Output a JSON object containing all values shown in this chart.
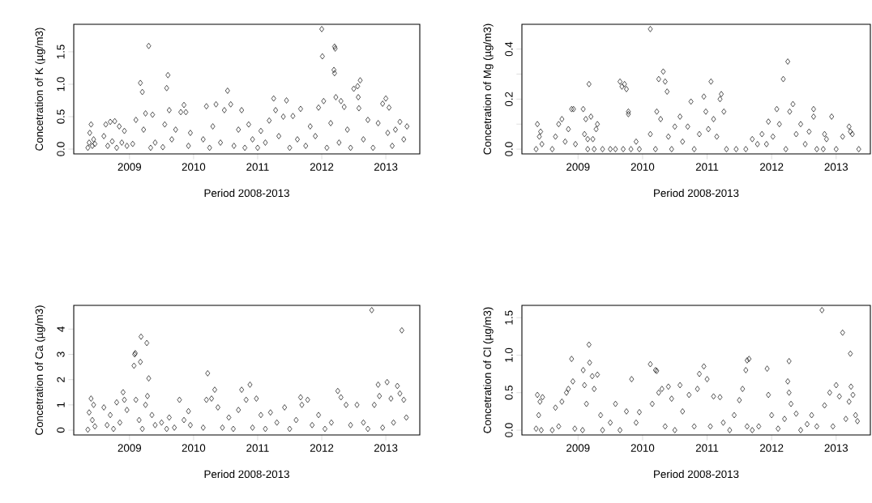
{
  "chart_data": [
    {
      "type": "scatter",
      "xlabel": "Period 2008-2013",
      "ylabel": "Concetration of K (µg/m3)",
      "marker": "diamond",
      "color": "#000000",
      "xlim": [
        2008.13,
        2013.53
      ],
      "xticks": [
        2009,
        2010,
        2011,
        2012,
        2013
      ],
      "ylim": [
        -0.074,
        1.924
      ],
      "yticks": [
        {
          "value": 0,
          "label": "0.0"
        },
        {
          "value": 0.5,
          "label": "0.5"
        },
        {
          "value": 1,
          "label": "1.0"
        },
        {
          "value": 1.5,
          "label": "1.5"
        }
      ],
      "x": [
        2008.35,
        2008.37,
        2008.38,
        2008.4,
        2008.42,
        2008.44,
        2008.46,
        2008.6,
        2008.63,
        2008.66,
        2008.7,
        2008.73,
        2008.77,
        2008.8,
        2008.84,
        2008.88,
        2008.92,
        2008.96,
        2009.05,
        2009.1,
        2009.17,
        2009.2,
        2009.22,
        2009.25,
        2009.3,
        2009.33,
        2009.36,
        2009.4,
        2009.52,
        2009.55,
        2009.58,
        2009.6,
        2009.62,
        2009.66,
        2009.72,
        2009.8,
        2009.85,
        2009.88,
        2009.92,
        2009.95,
        2010.15,
        2010.2,
        2010.25,
        2010.3,
        2010.35,
        2010.42,
        2010.48,
        2010.53,
        2010.58,
        2010.63,
        2010.7,
        2010.75,
        2010.8,
        2010.86,
        2010.92,
        2011.0,
        2011.05,
        2011.12,
        2011.18,
        2011.25,
        2011.28,
        2011.33,
        2011.4,
        2011.45,
        2011.5,
        2011.55,
        2011.62,
        2011.67,
        2011.75,
        2011.82,
        2011.9,
        2011.95,
        2012.0,
        2012.01,
        2012.03,
        2012.08,
        2012.14,
        2012.2,
        2012.21,
        2012.19,
        2012.2,
        2012.22,
        2012.27,
        2012.3,
        2012.35,
        2012.4,
        2012.45,
        2012.5,
        2012.56,
        2012.57,
        2012.58,
        2012.6,
        2012.65,
        2012.72,
        2012.8,
        2012.88,
        2012.95,
        2013.0,
        2013.03,
        2013.05,
        2013.1,
        2013.15,
        2013.22,
        2013.28,
        2013.33
      ],
      "values": [
        0.02,
        0.1,
        0.25,
        0.38,
        0.05,
        0.15,
        0.08,
        0.2,
        0.38,
        0.05,
        0.42,
        0.12,
        0.43,
        0.02,
        0.35,
        0.1,
        0.28,
        0.05,
        0.08,
        0.45,
        1.02,
        0.88,
        0.3,
        0.55,
        1.59,
        0.02,
        0.53,
        0.1,
        0.03,
        0.38,
        0.94,
        1.14,
        0.6,
        0.15,
        0.3,
        0.57,
        0.68,
        0.57,
        0.05,
        0.25,
        0.15,
        0.66,
        0.02,
        0.35,
        0.69,
        0.1,
        0.6,
        0.9,
        0.69,
        0.05,
        0.3,
        0.6,
        0.02,
        0.38,
        0.15,
        0.02,
        0.28,
        0.1,
        0.44,
        0.78,
        0.6,
        0.2,
        0.5,
        0.75,
        0.02,
        0.51,
        0.15,
        0.62,
        0.05,
        0.35,
        0.2,
        0.64,
        1.85,
        1.43,
        0.74,
        0.02,
        0.4,
        1.58,
        1.55,
        1.22,
        1.17,
        0.8,
        0.1,
        0.74,
        0.65,
        0.3,
        0.02,
        0.93,
        0.97,
        0.8,
        0.63,
        1.06,
        0.15,
        0.45,
        0.02,
        0.4,
        0.7,
        0.78,
        0.25,
        0.64,
        0.05,
        0.3,
        0.42,
        0.15,
        0.35
      ]
    },
    {
      "type": "scatter",
      "xlabel": "Period 2008-2013",
      "ylabel": "Concetration of Mg (µg/m3)",
      "marker": "diamond",
      "color": "#000000",
      "xlim": [
        2008.13,
        2013.53
      ],
      "xticks": [
        2009,
        2010,
        2011,
        2012,
        2013
      ],
      "ylim": [
        -0.019,
        0.499
      ],
      "yticks": [
        {
          "value": 0,
          "label": "0.0"
        },
        {
          "value": 0.1,
          "label": null
        },
        {
          "value": 0.2,
          "label": "0.2"
        },
        {
          "value": 0.3,
          "label": null
        },
        {
          "value": 0.4,
          "label": "0.4"
        }
      ],
      "x": [
        2008.35,
        2008.37,
        2008.4,
        2008.42,
        2008.44,
        2008.6,
        2008.65,
        2008.7,
        2008.75,
        2008.8,
        2008.85,
        2008.9,
        2008.93,
        2008.96,
        2009.08,
        2009.1,
        2009.12,
        2009.15,
        2009.17,
        2009.2,
        2009.23,
        2009.28,
        2009.3,
        2009.15,
        2009.25,
        2009.38,
        2009.5,
        2009.58,
        2009.65,
        2009.68,
        2009.72,
        2009.75,
        2009.78,
        2009.78,
        2009.7,
        2009.82,
        2009.9,
        2009.95,
        2010.12,
        2010.12,
        2010.2,
        2010.22,
        2010.25,
        2010.28,
        2010.32,
        2010.35,
        2010.38,
        2010.4,
        2010.45,
        2010.5,
        2010.58,
        2010.62,
        2010.7,
        2010.75,
        2010.8,
        2010.88,
        2010.95,
        2010.98,
        2011.02,
        2011.06,
        2011.1,
        2011.15,
        2011.2,
        2011.22,
        2011.26,
        2011.3,
        2011.45,
        2011.6,
        2011.7,
        2011.78,
        2011.85,
        2011.92,
        2011.95,
        2012.02,
        2012.08,
        2012.12,
        2012.18,
        2012.22,
        2012.25,
        2012.28,
        2012.33,
        2012.38,
        2012.45,
        2012.52,
        2012.58,
        2012.65,
        2012.65,
        2012.7,
        2012.8,
        2012.82,
        2012.85,
        2012.93,
        2013.0,
        2013.1,
        2013.2,
        2013.22,
        2013.25,
        2013.35
      ],
      "values": [
        0.0,
        0.1,
        0.05,
        0.07,
        0.02,
        0.0,
        0.05,
        0.1,
        0.12,
        0.03,
        0.08,
        0.16,
        0.16,
        0.02,
        0.16,
        0.06,
        0.12,
        0.04,
        0.26,
        0.13,
        0.04,
        0.08,
        0.1,
        0.0,
        0.0,
        0.0,
        0.0,
        0.0,
        0.27,
        0.25,
        0.26,
        0.24,
        0.15,
        0.14,
        0.0,
        0.0,
        0.03,
        0.0,
        0.48,
        0.06,
        0.0,
        0.15,
        0.28,
        0.12,
        0.31,
        0.27,
        0.23,
        0.05,
        0.0,
        0.09,
        0.13,
        0.03,
        0.09,
        0.19,
        0.0,
        0.06,
        0.21,
        0.15,
        0.08,
        0.27,
        0.12,
        0.05,
        0.2,
        0.22,
        0.15,
        0.0,
        0.0,
        0.0,
        0.04,
        0.02,
        0.06,
        0.02,
        0.11,
        0.05,
        0.16,
        0.1,
        0.28,
        0.0,
        0.35,
        0.15,
        0.18,
        0.06,
        0.1,
        0.02,
        0.07,
        0.16,
        0.13,
        0.0,
        0.0,
        0.06,
        0.04,
        0.13,
        0.0,
        0.05,
        0.09,
        0.07,
        0.06,
        0.0
      ]
    },
    {
      "type": "scatter",
      "xlabel": "Period 2008-2013",
      "ylabel": "Concetration of Ca (µg/m3)",
      "marker": "diamond",
      "color": "#000000",
      "xlim": [
        2008.13,
        2013.53
      ],
      "xticks": [
        2009,
        2010,
        2011,
        2012,
        2013
      ],
      "ylim": [
        -0.19,
        4.94
      ],
      "yticks": [
        0,
        1,
        2,
        3,
        4
      ],
      "x": [
        2008.35,
        2008.37,
        2008.4,
        2008.42,
        2008.44,
        2008.46,
        2008.6,
        2008.65,
        2008.7,
        2008.75,
        2008.8,
        2008.85,
        2008.9,
        2008.92,
        2008.96,
        2009.07,
        2009.08,
        2009.09,
        2009.1,
        2009.15,
        2009.17,
        2009.18,
        2009.2,
        2009.25,
        2009.27,
        2009.28,
        2009.3,
        2009.35,
        2009.4,
        2009.5,
        2009.58,
        2009.62,
        2009.7,
        2009.78,
        2009.85,
        2009.92,
        2009.95,
        2010.15,
        2010.2,
        2010.22,
        2010.28,
        2010.33,
        2010.38,
        2010.45,
        2010.55,
        2010.62,
        2010.7,
        2010.75,
        2010.82,
        2010.88,
        2010.92,
        2010.98,
        2011.05,
        2011.12,
        2011.2,
        2011.3,
        2011.42,
        2011.5,
        2011.6,
        2011.67,
        2011.69,
        2011.78,
        2011.85,
        2011.95,
        2012.05,
        2012.15,
        2012.25,
        2012.3,
        2012.38,
        2012.45,
        2012.55,
        2012.65,
        2012.72,
        2012.78,
        2012.82,
        2012.88,
        2012.9,
        2012.95,
        2013.02,
        2013.08,
        2013.12,
        2013.18,
        2013.22,
        2013.25,
        2013.28,
        2013.32
      ],
      "values": [
        0.02,
        0.7,
        1.25,
        0.4,
        1.0,
        0.15,
        0.9,
        0.2,
        0.6,
        0.05,
        1.1,
        0.3,
        1.5,
        1.2,
        0.8,
        2.55,
        3.0,
        3.05,
        1.2,
        0.4,
        2.7,
        3.7,
        0.05,
        1.0,
        3.45,
        1.35,
        2.05,
        0.6,
        0.2,
        0.3,
        0.05,
        0.5,
        0.1,
        1.2,
        0.4,
        0.75,
        0.2,
        0.1,
        1.2,
        2.25,
        1.25,
        1.6,
        0.9,
        0.1,
        0.5,
        0.05,
        0.8,
        1.6,
        1.2,
        1.8,
        0.1,
        1.25,
        0.6,
        0.05,
        0.7,
        0.3,
        0.9,
        0.05,
        0.4,
        1.3,
        1.0,
        1.2,
        0.2,
        0.6,
        0.05,
        0.3,
        1.55,
        1.3,
        1.0,
        0.2,
        1.0,
        0.3,
        0.05,
        4.75,
        1.0,
        1.8,
        1.35,
        0.1,
        1.9,
        1.25,
        0.3,
        1.75,
        1.45,
        3.95,
        1.2,
        0.5
      ]
    },
    {
      "type": "scatter",
      "xlabel": "Period 2008-2013",
      "ylabel": "Concetration of Cl (µg/m3)",
      "marker": "diamond",
      "color": "#000000",
      "xlim": [
        2008.13,
        2013.53
      ],
      "xticks": [
        2009,
        2010,
        2011,
        2012,
        2013
      ],
      "ylim": [
        -0.064,
        1.664
      ],
      "yticks": [
        {
          "value": 0,
          "label": "0.0"
        },
        {
          "value": 0.5,
          "label": "0.5"
        },
        {
          "value": 1,
          "label": "1.0"
        },
        {
          "value": 1.5,
          "label": "1.5"
        }
      ],
      "x": [
        2008.35,
        2008.37,
        2008.39,
        2008.41,
        2008.43,
        2008.45,
        2008.6,
        2008.65,
        2008.7,
        2008.75,
        2008.82,
        2008.85,
        2008.9,
        2008.92,
        2008.95,
        2009.07,
        2009.08,
        2009.1,
        2009.13,
        2009.17,
        2009.18,
        2009.22,
        2009.25,
        2009.3,
        2009.35,
        2009.38,
        2009.5,
        2009.58,
        2009.65,
        2009.75,
        2009.83,
        2009.9,
        2009.95,
        2010.12,
        2010.15,
        2010.2,
        2010.22,
        2010.25,
        2010.3,
        2010.35,
        2010.4,
        2010.45,
        2010.5,
        2010.58,
        2010.62,
        2010.72,
        2010.8,
        2010.85,
        2010.88,
        2010.95,
        2011.0,
        2011.05,
        2011.1,
        2011.2,
        2011.25,
        2011.35,
        2011.42,
        2011.5,
        2011.55,
        2011.6,
        2011.62,
        2011.65,
        2011.62,
        2011.7,
        2011.8,
        2011.93,
        2011.95,
        2012.0,
        2012.1,
        2012.2,
        2012.25,
        2012.27,
        2012.27,
        2012.3,
        2012.38,
        2012.45,
        2012.55,
        2012.62,
        2012.7,
        2012.78,
        2012.82,
        2012.9,
        2012.95,
        2013.0,
        2013.05,
        2013.1,
        2013.15,
        2013.2,
        2013.22,
        2013.23,
        2013.26,
        2013.3,
        2013.33
      ],
      "values": [
        0.02,
        0.47,
        0.2,
        0.38,
        0.0,
        0.44,
        0.0,
        0.3,
        0.05,
        0.38,
        0.5,
        0.55,
        0.95,
        0.65,
        0.02,
        0.0,
        0.8,
        0.6,
        0.35,
        1.14,
        0.9,
        0.72,
        0.55,
        0.74,
        0.2,
        0.0,
        0.1,
        0.35,
        0.0,
        0.25,
        0.68,
        0.1,
        0.24,
        0.88,
        0.35,
        0.8,
        0.79,
        0.5,
        0.55,
        0.05,
        0.58,
        0.42,
        0.0,
        0.6,
        0.25,
        0.47,
        0.05,
        0.55,
        0.75,
        0.85,
        0.68,
        0.05,
        0.45,
        0.44,
        0.1,
        0.0,
        0.2,
        0.4,
        0.55,
        0.8,
        0.93,
        0.95,
        0.05,
        0.0,
        0.05,
        0.82,
        0.47,
        0.2,
        0.02,
        0.15,
        0.65,
        0.92,
        0.5,
        0.35,
        0.22,
        0.0,
        0.08,
        0.2,
        0.05,
        1.6,
        0.33,
        0.5,
        0.05,
        0.6,
        0.45,
        1.3,
        0.15,
        0.38,
        1.02,
        0.58,
        0.47,
        0.2,
        0.12
      ]
    }
  ]
}
